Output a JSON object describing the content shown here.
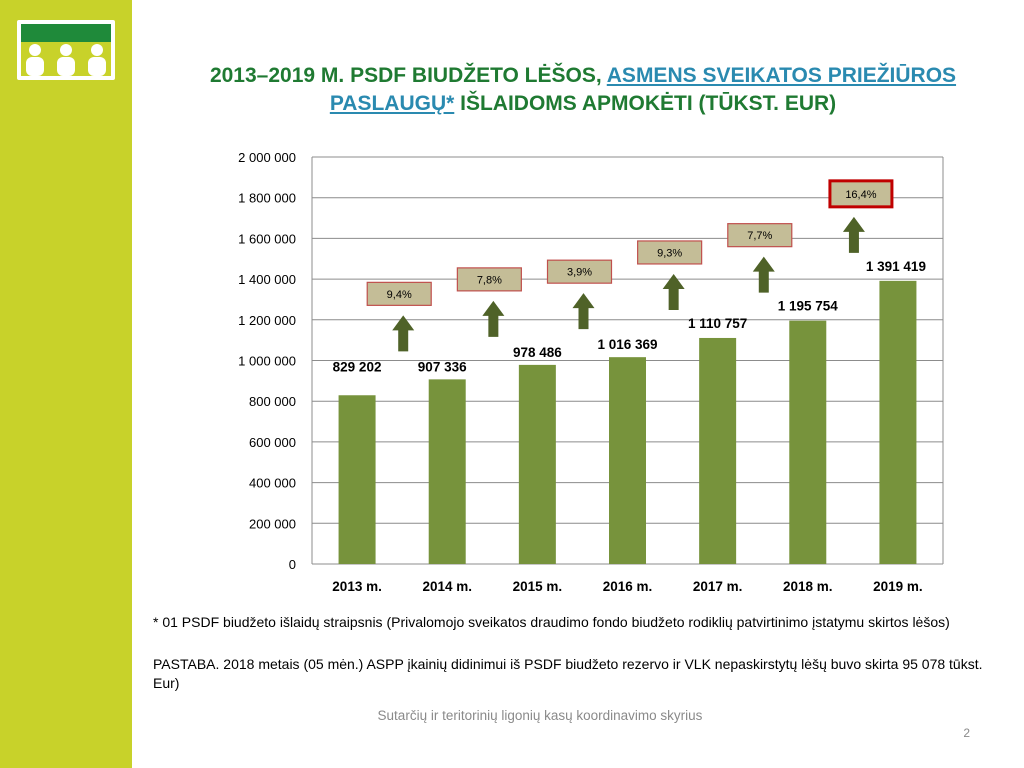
{
  "slide": {
    "title_part1": "2013–2019 M. PSDF BIUDŽETO LĖŠOS, ",
    "title_link": "ASMENS SVEIKATOS PRIEŽIŪROS PASLAUGŲ*",
    "title_part2": " IŠLAIDOMS  APMOKĖTI (TŪKST. EUR)",
    "footnote": "* 01 PSDF biudžeto išlaidų straipsnis (Privalomojo sveikatos draudimo fondo biudžeto rodiklių patvirtinimo įstatymu skirtos lėšos)",
    "note": "PASTABA. 2018 metais (05 mėn.) ASPP įkainių didinimui iš PSDF biudžeto rezervo ir VLK nepaskirstytų lėšų buvo skirta 95 078 tūkst. Eur)",
    "footer": "Sutarčių ir teritorinių ligonių kasų koordinavimo skyrius",
    "page_number": "2"
  },
  "colors": {
    "sidebar": "#c8d22a",
    "bar": "#77933c",
    "arrow": "#4f6228",
    "box_fill": "#c4bd97",
    "box_border": "#c0504d",
    "highlight_border": "#c00000",
    "title": "#1f7a32"
  },
  "chart_data": {
    "type": "bar",
    "categories": [
      "2013 m.",
      "2014 m.",
      "2015 m.",
      "2016 m.",
      "2017 m.",
      "2018 m.",
      "2019 m."
    ],
    "values": [
      829202,
      907336,
      978486,
      1016369,
      1110757,
      1195754,
      1391419
    ],
    "value_labels": [
      "829 202",
      "907 336",
      "978 486",
      "1 016 369",
      "1 110 757",
      "1 195 754",
      "1 391 419"
    ],
    "growth_labels": [
      "",
      "9,4%",
      "7,8%",
      "3,9%",
      "9,3%",
      "7,7%",
      "16,4%"
    ],
    "highlighted_growth": "16,4%",
    "ylim": [
      0,
      2000000
    ],
    "yticks": [
      0,
      200000,
      400000,
      600000,
      800000,
      1000000,
      1200000,
      1400000,
      1600000,
      1800000,
      2000000
    ],
    "ytick_labels": [
      "0",
      "200 000",
      "400 000",
      "600 000",
      "800 000",
      "1 000 000",
      "1 200 000",
      "1 400 000",
      "1 600 000",
      "1 800 000",
      "2 000 000"
    ],
    "grid": true,
    "legend": "none"
  }
}
